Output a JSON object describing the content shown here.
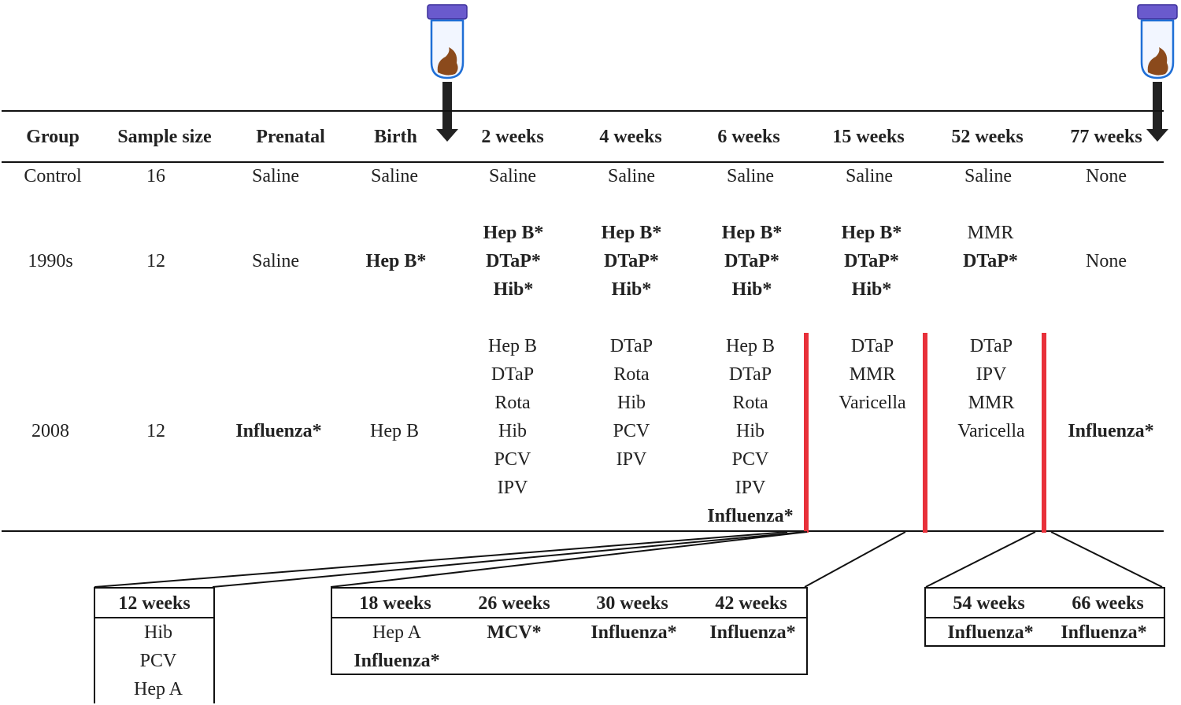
{
  "columns": [
    "Group",
    "Sample size",
    "Prenatal",
    "Birth",
    "2 weeks",
    "4 weeks",
    "6 weeks",
    "15 weeks",
    "52 weeks",
    "77 weeks"
  ],
  "rows": [
    {
      "group": "Control",
      "n": "16",
      "prenatal": "Saline",
      "birth": "Saline",
      "w2": [
        "Saline"
      ],
      "w4": [
        "Saline"
      ],
      "w6": [
        "Saline"
      ],
      "w15": [
        "Saline"
      ],
      "w52": [
        "Saline"
      ],
      "w77": "None"
    },
    {
      "group": "1990s",
      "n": "12",
      "prenatal": "Saline",
      "birth": "Hep B*",
      "w2": [
        "Hep B*",
        "DTaP*",
        "Hib*"
      ],
      "w4": [
        "Hep B*",
        "DTaP*",
        "Hib*"
      ],
      "w6": [
        "Hep B*",
        "DTaP*",
        "Hib*"
      ],
      "w15": [
        "Hep B*",
        "DTaP*",
        "Hib*"
      ],
      "w52": [
        "MMR",
        "DTaP*"
      ],
      "w77": "None"
    },
    {
      "group": "2008",
      "n": "12",
      "prenatal": "Influenza*",
      "birth": "Hep B",
      "w2": [
        "Hep B",
        "DTaP",
        "Rota",
        "Hib",
        "PCV",
        "IPV"
      ],
      "w4": [
        "DTaP",
        "Rota",
        "Hib",
        "PCV",
        "IPV"
      ],
      "w6": [
        "Hep B",
        "DTaP",
        "Rota",
        "Hib",
        "PCV",
        "IPV",
        "Influenza*"
      ],
      "w15": [
        "DTaP",
        "MMR",
        "Varicella"
      ],
      "w52": [
        "DTaP",
        "IPV",
        "MMR",
        "Varicella"
      ],
      "w77": "Influenza*"
    }
  ],
  "insets": {
    "w12": {
      "header": "12 weeks",
      "items": [
        "Hib",
        "PCV",
        "Hep A"
      ]
    },
    "mid": [
      {
        "header": "18 weeks",
        "items": [
          "Hep A",
          "Influenza*"
        ]
      },
      {
        "header": "26 weeks",
        "items": [
          "MCV*"
        ]
      },
      {
        "header": "30 weeks",
        "items": [
          "Influenza*"
        ]
      },
      {
        "header": "42 weeks",
        "items": [
          "Influenza*"
        ]
      }
    ],
    "late": [
      {
        "header": "54 weeks",
        "items": [
          "Influenza*"
        ]
      },
      {
        "header": "66 weeks",
        "items": [
          "Influenza*"
        ]
      }
    ]
  },
  "colors": {
    "marker": "#e8303a",
    "tube_cap": "#6a5acd",
    "tube_outline": "#1f6fd6",
    "sample": "#8b4a1c",
    "arrow": "#222222"
  },
  "icons": [
    "sample-tube-icon",
    "down-arrow-icon"
  ]
}
